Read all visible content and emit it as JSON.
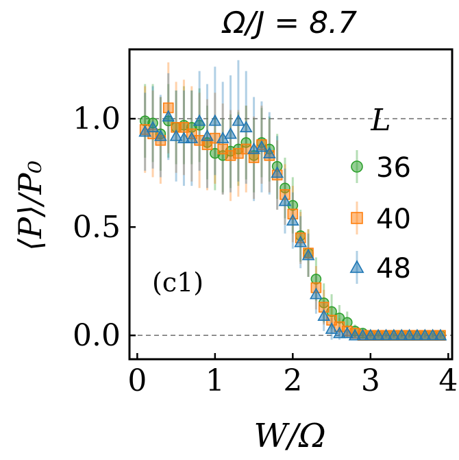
{
  "chart_data": {
    "type": "scatter",
    "title": "Ω/J = 8.7",
    "xlabel": "W/Ω",
    "ylabel": "⟨P⟩/P₀",
    "annotation": "(c1)",
    "legend_title": "L",
    "legend_position": "right",
    "xlim": [
      -0.1,
      4.05
    ],
    "ylim": [
      -0.11,
      1.32
    ],
    "xticks": [
      0,
      1,
      2,
      3,
      4
    ],
    "yticks": [
      0.0,
      0.5,
      1.0
    ],
    "ytick_labels": [
      "0.0",
      "0.5",
      "1.0"
    ],
    "reference_lines": [
      0.0,
      1.0
    ],
    "grid": false,
    "series": [
      {
        "name": "36",
        "marker": "circle",
        "color": "#2ca02c",
        "x": [
          0.1,
          0.2,
          0.3,
          0.4,
          0.5,
          0.6,
          0.7,
          0.8,
          0.9,
          1.0,
          1.1,
          1.2,
          1.3,
          1.4,
          1.5,
          1.6,
          1.7,
          1.8,
          1.9,
          2.0,
          2.1,
          2.2,
          2.3,
          2.4,
          2.5,
          2.6,
          2.7,
          2.8,
          2.9,
          3.0,
          3.1,
          3.2,
          3.3,
          3.4,
          3.5,
          3.6,
          3.7,
          3.8,
          3.9
        ],
        "y": [
          0.99,
          0.98,
          0.93,
          0.99,
          0.96,
          0.97,
          0.96,
          0.97,
          0.89,
          0.84,
          0.83,
          0.85,
          0.86,
          0.89,
          0.83,
          0.89,
          0.86,
          0.78,
          0.68,
          0.6,
          0.46,
          0.38,
          0.26,
          0.15,
          0.11,
          0.08,
          0.06,
          0.02,
          0.01,
          0.0,
          0.0,
          0.0,
          0.0,
          0.0,
          0.0,
          0.0,
          0.0,
          0.0,
          0.0
        ],
        "err": [
          0.17,
          0.18,
          0.17,
          0.17,
          0.17,
          0.18,
          0.17,
          0.17,
          0.17,
          0.17,
          0.17,
          0.17,
          0.17,
          0.17,
          0.17,
          0.16,
          0.15,
          0.15,
          0.14,
          0.13,
          0.12,
          0.11,
          0.1,
          0.09,
          0.08,
          0.06,
          0.05,
          0.03,
          0.02,
          0.01,
          0.01,
          0.01,
          0.01,
          0.01,
          0.01,
          0.01,
          0.01,
          0.01,
          0.01
        ]
      },
      {
        "name": "40",
        "marker": "square",
        "color": "#ff7f0e",
        "x": [
          0.1,
          0.2,
          0.3,
          0.4,
          0.5,
          0.6,
          0.7,
          0.8,
          0.9,
          1.0,
          1.1,
          1.2,
          1.3,
          1.4,
          1.5,
          1.6,
          1.7,
          1.8,
          1.9,
          2.0,
          2.1,
          2.2,
          2.3,
          2.4,
          2.5,
          2.6,
          2.7,
          2.8,
          2.9,
          3.0,
          3.1,
          3.2,
          3.3,
          3.4,
          3.5,
          3.6,
          3.7,
          3.8,
          3.9
        ],
        "y": [
          0.95,
          0.93,
          0.9,
          1.05,
          0.96,
          0.96,
          0.93,
          0.9,
          0.88,
          0.91,
          0.86,
          0.83,
          0.84,
          0.86,
          0.82,
          0.88,
          0.83,
          0.74,
          0.65,
          0.56,
          0.45,
          0.38,
          0.22,
          0.13,
          0.07,
          0.04,
          0.02,
          0.01,
          0.0,
          0.0,
          0.0,
          0.0,
          0.0,
          0.0,
          0.0,
          0.0,
          0.0,
          0.0,
          0.0
        ],
        "err": [
          0.2,
          0.2,
          0.2,
          0.21,
          0.21,
          0.22,
          0.22,
          0.22,
          0.21,
          0.21,
          0.21,
          0.21,
          0.2,
          0.2,
          0.19,
          0.18,
          0.17,
          0.16,
          0.14,
          0.13,
          0.12,
          0.11,
          0.1,
          0.08,
          0.06,
          0.04,
          0.03,
          0.02,
          0.01,
          0.01,
          0.01,
          0.01,
          0.01,
          0.01,
          0.01,
          0.01,
          0.01,
          0.01,
          0.01
        ]
      },
      {
        "name": "48",
        "marker": "triangle",
        "color": "#1f77b4",
        "x": [
          0.1,
          0.2,
          0.3,
          0.4,
          0.5,
          0.6,
          0.7,
          0.8,
          0.9,
          1.0,
          1.1,
          1.2,
          1.3,
          1.4,
          1.5,
          1.6,
          1.7,
          1.8,
          1.9,
          2.0,
          2.1,
          2.2,
          2.3,
          2.4,
          2.5,
          2.6,
          2.7,
          2.8,
          2.9,
          3.0,
          3.1,
          3.2,
          3.3,
          3.4,
          3.5,
          3.6,
          3.7,
          3.8,
          3.9
        ],
        "y": [
          0.94,
          0.96,
          0.92,
          1.01,
          0.92,
          0.91,
          0.91,
          0.99,
          0.92,
          0.99,
          0.91,
          0.93,
          0.99,
          0.96,
          0.86,
          0.87,
          0.84,
          0.75,
          0.62,
          0.53,
          0.43,
          0.37,
          0.19,
          0.09,
          0.03,
          0.01,
          0.01,
          0.0,
          0.0,
          0.0,
          0.0,
          0.0,
          0.0,
          0.0,
          0.0,
          0.0,
          0.0,
          0.0,
          0.0
        ],
        "err": [
          0.18,
          0.19,
          0.19,
          0.2,
          0.21,
          0.22,
          0.22,
          0.23,
          0.24,
          0.25,
          0.26,
          0.27,
          0.28,
          0.26,
          0.24,
          0.21,
          0.19,
          0.17,
          0.15,
          0.13,
          0.12,
          0.1,
          0.09,
          0.07,
          0.05,
          0.03,
          0.02,
          0.01,
          0.01,
          0.01,
          0.01,
          0.01,
          0.01,
          0.01,
          0.01,
          0.01,
          0.01,
          0.01,
          0.01
        ]
      }
    ]
  }
}
